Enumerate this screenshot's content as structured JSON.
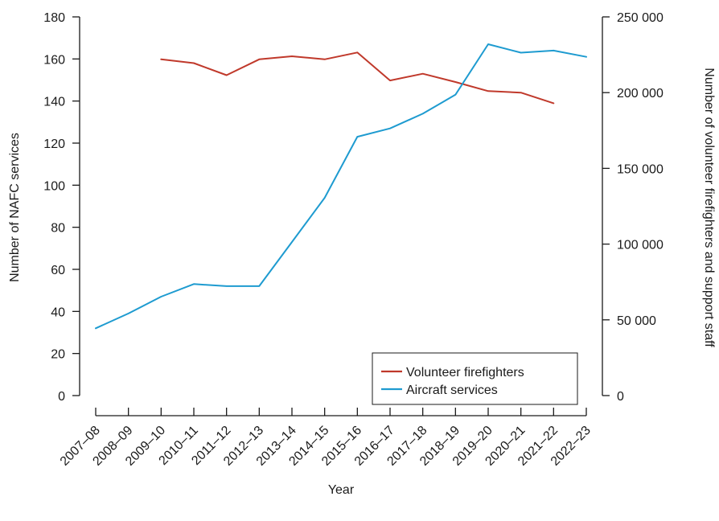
{
  "chart_data": {
    "type": "line",
    "xlabel": "Year",
    "ylabel_left": "Number of NAFC services",
    "ylabel_right": "Number of volunteer firefighters and support staff",
    "categories": [
      "2007–08",
      "2008–09",
      "2009–10",
      "2010–11",
      "2011–12",
      "2012–13",
      "2013–14",
      "2014–15",
      "2015–16",
      "2016–17",
      "2017–18",
      "2018–19",
      "2019–20",
      "2020–21",
      "2021–22",
      "2022–23"
    ],
    "left_axis": {
      "min": 0,
      "max": 180,
      "ticks": [
        0,
        20,
        40,
        60,
        80,
        100,
        120,
        140,
        160,
        180
      ],
      "tick_labels": [
        "0",
        "20",
        "40",
        "60",
        "80",
        "100",
        "120",
        "140",
        "160",
        "180"
      ]
    },
    "right_axis": {
      "min": 0,
      "max": 250000,
      "ticks": [
        0,
        50000,
        100000,
        150000,
        200000,
        250000
      ],
      "tick_labels": [
        "0",
        "50 000",
        "100 000",
        "150 000",
        "200 000",
        "250 000"
      ]
    },
    "grid": false,
    "legend_position": "right-lower-inside",
    "series": [
      {
        "name": "Volunteer firefighters",
        "axis": "right",
        "color": "#c0392b",
        "values": [
          null,
          null,
          222000,
          219500,
          211500,
          222000,
          224000,
          222000,
          226500,
          208000,
          212500,
          207000,
          201000,
          200000,
          193000,
          null
        ]
      },
      {
        "name": "Aircraft services",
        "axis": "left",
        "color": "#1e9bd0",
        "values": [
          32,
          39,
          47,
          53,
          52,
          52,
          73,
          94,
          123,
          127,
          134,
          143,
          167,
          163,
          164,
          161
        ]
      }
    ]
  }
}
